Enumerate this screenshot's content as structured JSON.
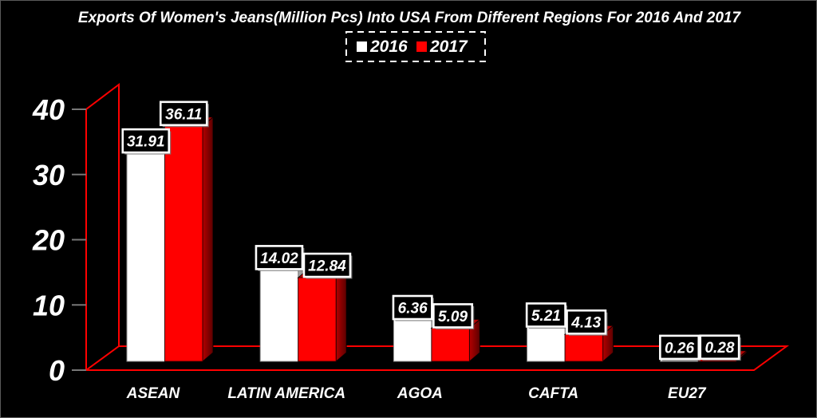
{
  "chart_data": {
    "type": "bar",
    "style": "3d-clustered-column",
    "title": "Exports Of Women's Jeans(Million Pcs) Into USA From Different Regions For 2016 And 2017",
    "categories": [
      "ASEAN",
      "LATIN AMERICA",
      "AGOA",
      "CAFTA",
      "EU27"
    ],
    "series": [
      {
        "name": "2016",
        "color": "#ffffff",
        "values": [
          31.91,
          14.02,
          6.36,
          5.21,
          0.26
        ]
      },
      {
        "name": "2017",
        "color": "#ff0000",
        "values": [
          36.11,
          12.84,
          5.09,
          4.13,
          0.28
        ]
      }
    ],
    "xlabel": "",
    "ylabel": "",
    "ylim": [
      0,
      40
    ],
    "y_ticks": [
      0,
      10,
      20,
      30,
      40
    ],
    "grid": false,
    "legend_position": "top",
    "value_labels": true,
    "value_label_format": "2dp",
    "colors": {
      "background": "#000000",
      "axis_line": "#ff0000",
      "tick_mark": "#777777",
      "text": "#ffffff",
      "value_label_box_fill": "#000000",
      "value_label_box_border": "#ffffff"
    }
  }
}
